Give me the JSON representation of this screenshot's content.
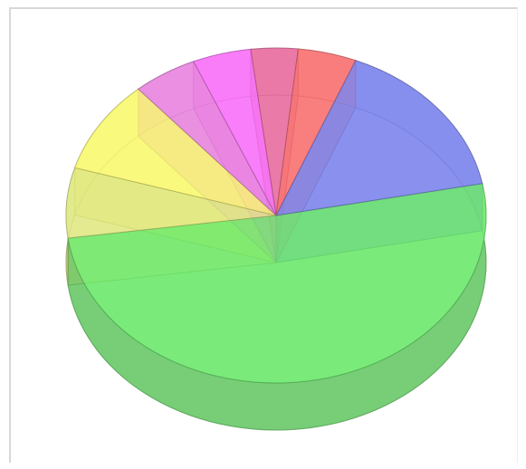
{
  "chart_data": {
    "type": "pie",
    "style": "3d-transparent",
    "title": "",
    "legend": "none",
    "slices": [
      {
        "value": 56.5,
        "color": "#6ef06e"
      },
      {
        "value": 7.5,
        "color": "#e6ee86"
      },
      {
        "value": 10.0,
        "color": "#ffff73"
      },
      {
        "value": 5.5,
        "color": "#ee88e4"
      },
      {
        "value": 5.0,
        "color": "#ff73ff"
      },
      {
        "value": 4.0,
        "color": "#ee6fa3"
      },
      {
        "value": 5.0,
        "color": "#ff7373"
      },
      {
        "value": 17.5,
        "color": "#7f88f2"
      }
    ]
  }
}
